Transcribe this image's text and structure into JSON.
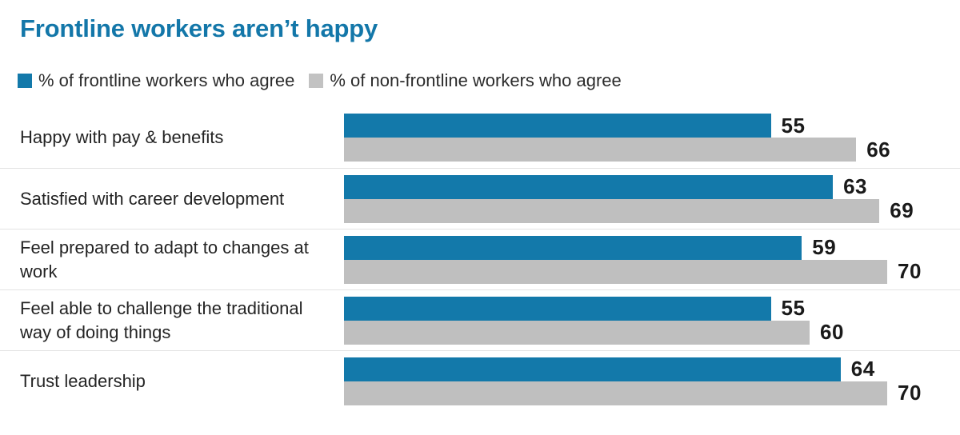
{
  "title": "Frontline workers aren’t happy",
  "legend": [
    {
      "label": "% of frontline workers who agree",
      "color": "#1379aa"
    },
    {
      "label": "% of non-frontline workers who agree",
      "color": "#c2c2c2"
    }
  ],
  "colors": {
    "title": "#1377a9",
    "frontline_bar": "#1379aa",
    "non_frontline_bar": "#bfbfbf",
    "separator": "#e3e3e3",
    "value_text": "#1a1a1a"
  },
  "chart_data": {
    "type": "bar",
    "orientation": "horizontal",
    "title": "Frontline workers aren’t happy",
    "xlabel": "",
    "ylabel": "",
    "xlim": [
      0,
      70
    ],
    "grid": false,
    "legend_position": "top",
    "value_labels_shown": true,
    "categories": [
      "Happy with pay & benefits",
      "Satisfied with career development",
      "Feel prepared to adapt to changes at work",
      "Feel able to challenge the traditional way of doing things",
      "Trust leadership"
    ],
    "series": [
      {
        "name": "% of frontline workers who agree",
        "color": "#1379aa",
        "values": [
          55,
          63,
          59,
          55,
          64
        ]
      },
      {
        "name": "% of non-frontline workers who agree",
        "color": "#bfbfbf",
        "values": [
          66,
          69,
          70,
          60,
          70
        ]
      }
    ]
  }
}
